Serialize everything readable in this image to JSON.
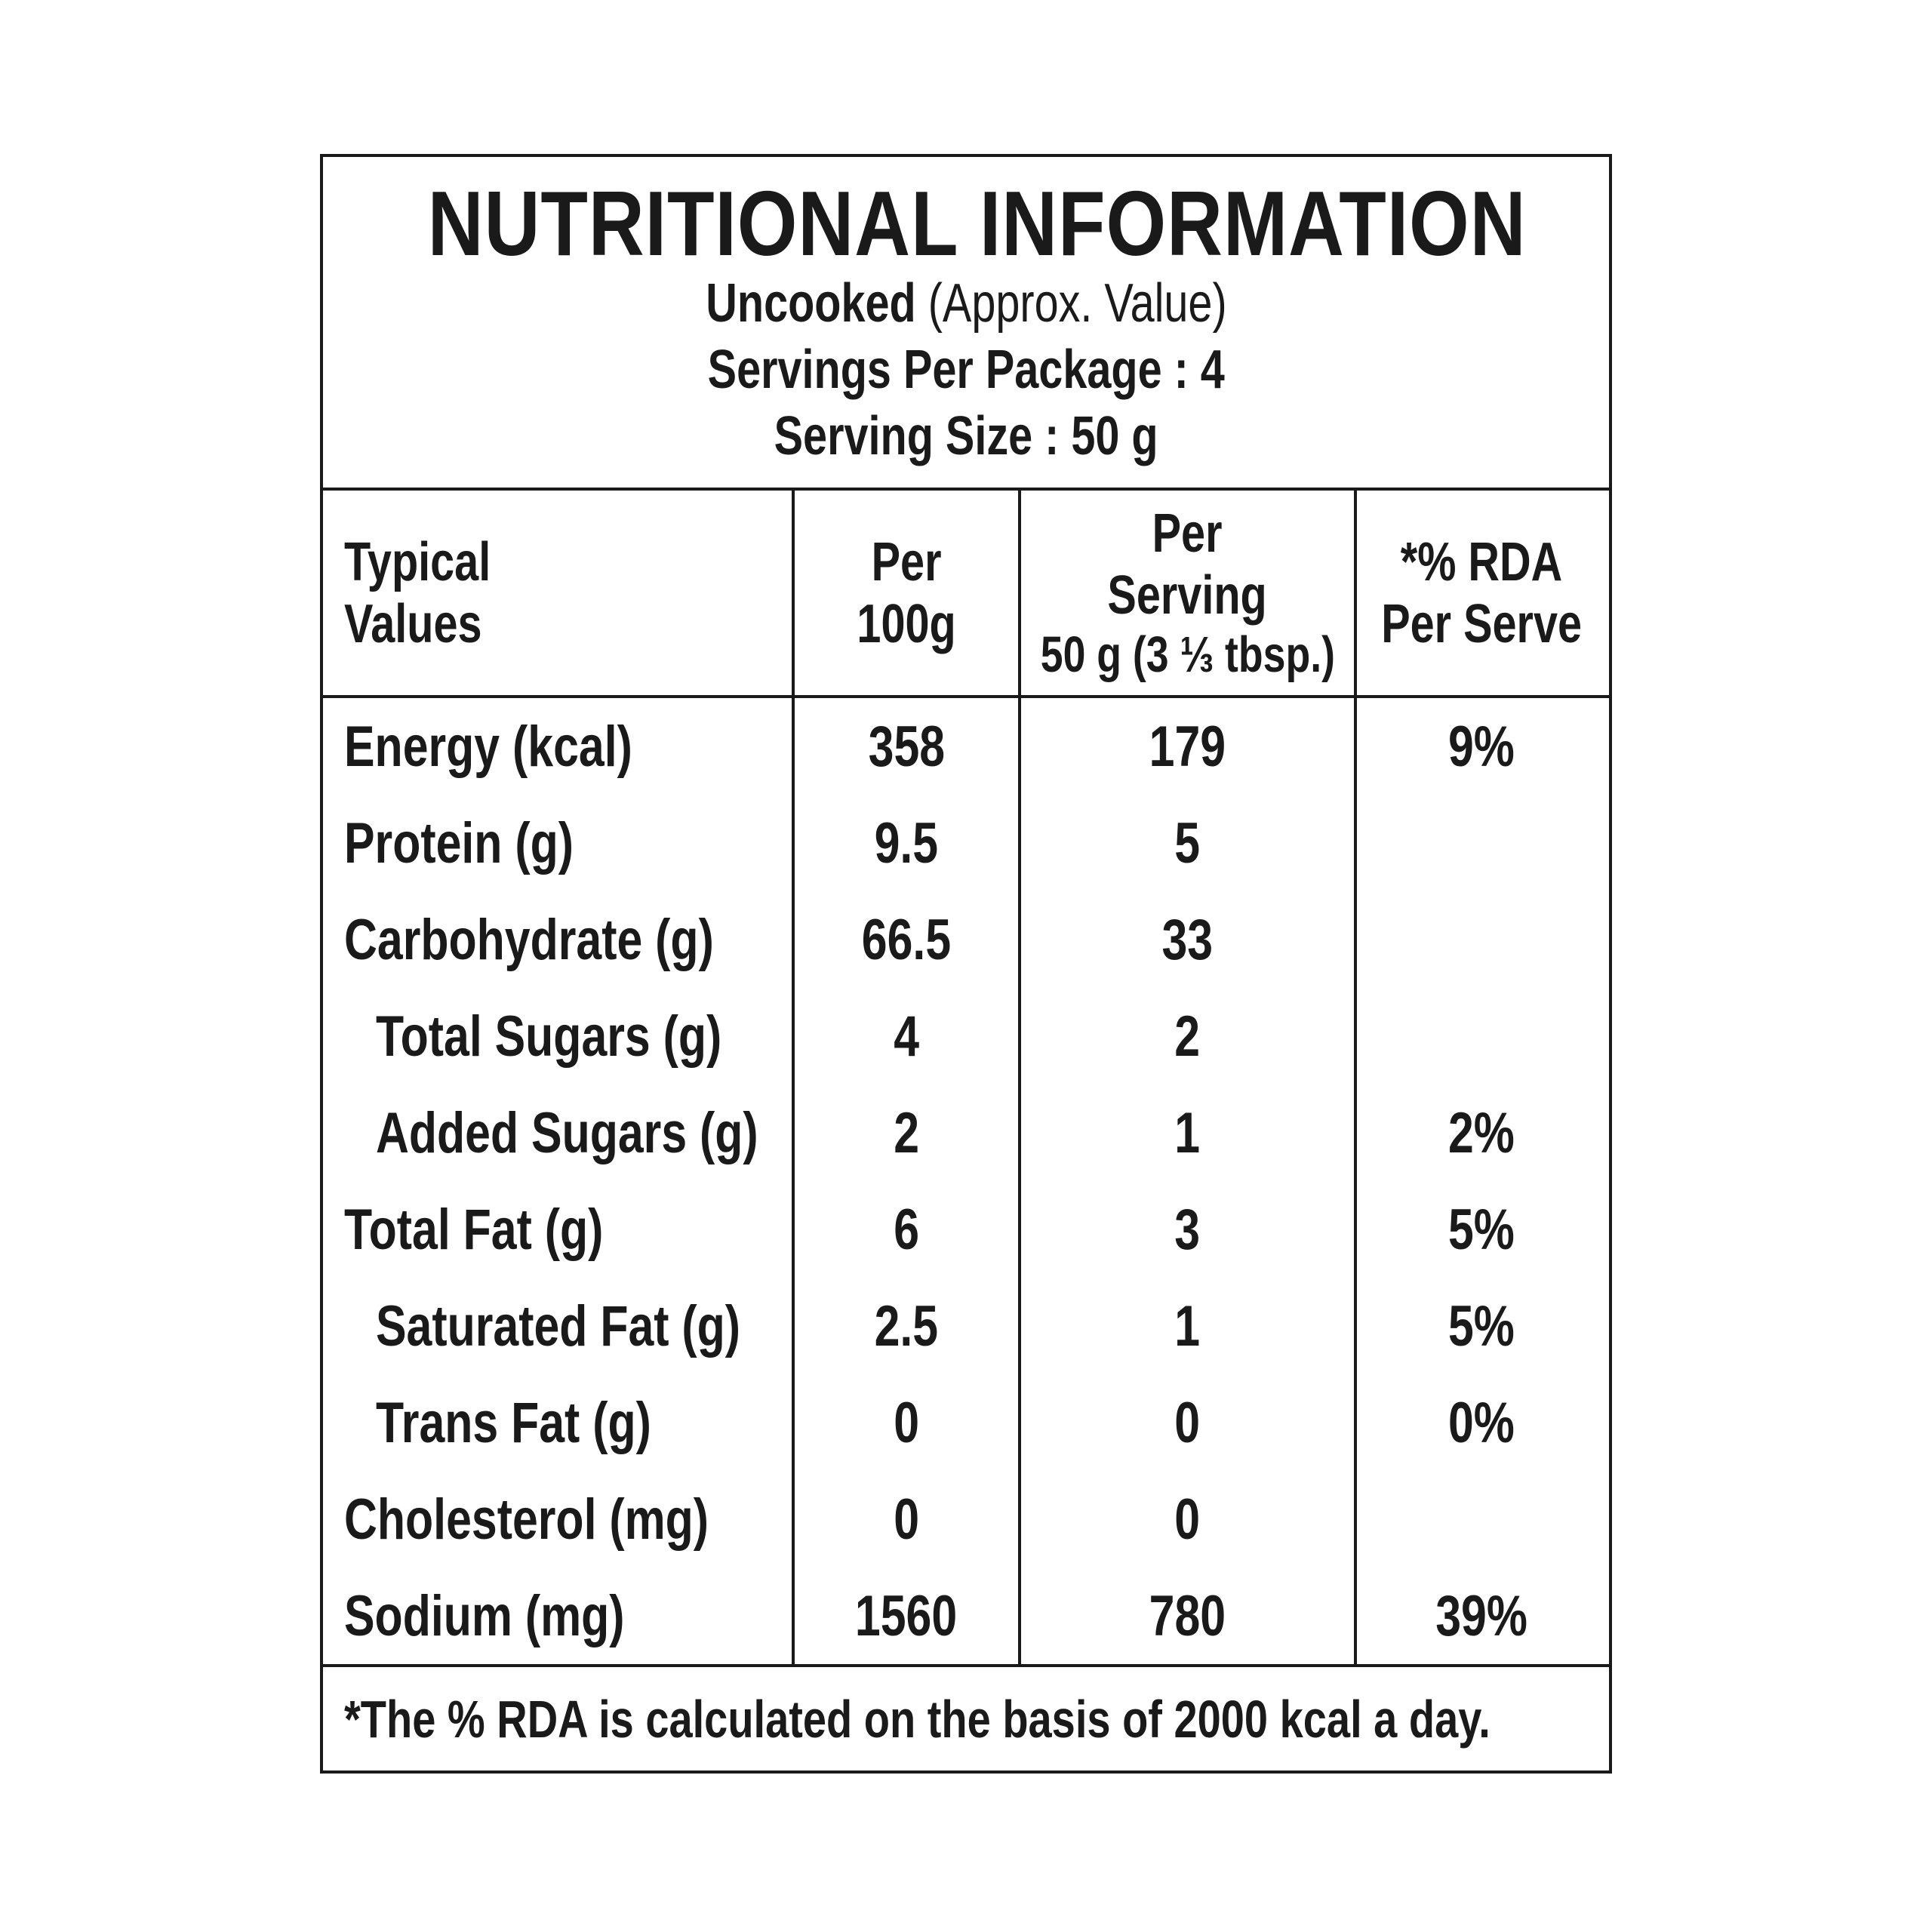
{
  "header": {
    "title": "NUTRITIONAL INFORMATION",
    "subtitle_bold": "Uncooked",
    "subtitle_rest": " (Approx. Value)",
    "servings_line": "Servings Per Package : 4",
    "serving_size_line": "Serving Size : 50 g"
  },
  "table": {
    "columns": {
      "col1_line1": "Typical",
      "col1_line2": "Values",
      "col2_line1": "Per",
      "col2_line2": "100g",
      "col3_line1": "Per",
      "col3_line2": "Serving",
      "col3_line3": "50 g (3 ⅓ tbsp.)",
      "col4_line1": "*% RDA",
      "col4_line2": "Per Serve"
    },
    "rows": [
      {
        "label": "Energy (kcal)",
        "per100": "358",
        "perServing": "179",
        "rda": "9%"
      },
      {
        "label": "Protein (g)",
        "per100": "9.5",
        "perServing": "5",
        "rda": ""
      },
      {
        "label": "Carbohydrate (g)",
        "per100": "66.5",
        "perServing": "33",
        "rda": ""
      },
      {
        "label": "Total Sugars (g)",
        "per100": "4",
        "perServing": "2",
        "rda": ""
      },
      {
        "label": "Added Sugars (g)",
        "per100": "2",
        "perServing": "1",
        "rda": "2%"
      },
      {
        "label": "Total Fat (g)",
        "per100": "6",
        "perServing": "3",
        "rda": "5%"
      },
      {
        "label": "Saturated Fat (g)",
        "per100": "2.5",
        "perServing": "1",
        "rda": "5%"
      },
      {
        "label": "Trans Fat (g)",
        "per100": "0",
        "perServing": "0",
        "rda": "0%"
      },
      {
        "label": "Cholesterol (mg)",
        "per100": "0",
        "perServing": "0",
        "rda": ""
      },
      {
        "label": "Sodium (mg)",
        "per100": "1560",
        "perServing": "780",
        "rda": "39%"
      }
    ],
    "footnote": "*The % RDA is calculated on the basis of 2000 kcal a day.",
    "colors": {
      "ink": "#1a1a1a",
      "background": "#ffffff"
    }
  }
}
